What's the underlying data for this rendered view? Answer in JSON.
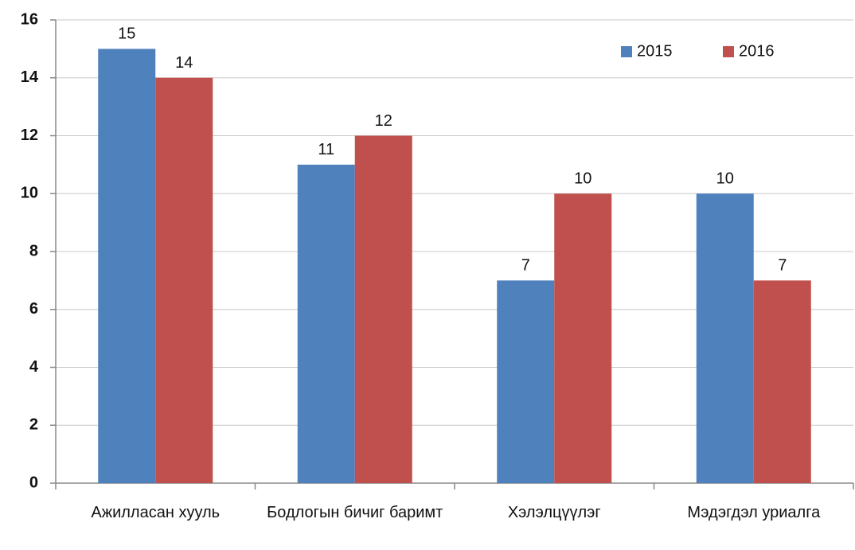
{
  "chart_data": {
    "type": "bar",
    "categories": [
      "Ажилласан хууль",
      "Бодлогын бичиг баримт",
      "Хэлэлцүүлэг",
      "Мэдэгдэл уриалга"
    ],
    "series": [
      {
        "name": "2015",
        "color": "#4f81bd",
        "values": [
          15,
          11,
          7,
          10
        ]
      },
      {
        "name": "2016",
        "color": "#c0504d",
        "values": [
          14,
          12,
          10,
          7
        ]
      }
    ],
    "ylim": [
      0,
      16
    ],
    "yticks": [
      0,
      2,
      4,
      6,
      8,
      10,
      12,
      14,
      16
    ],
    "grid": true,
    "legend": "top-right"
  }
}
